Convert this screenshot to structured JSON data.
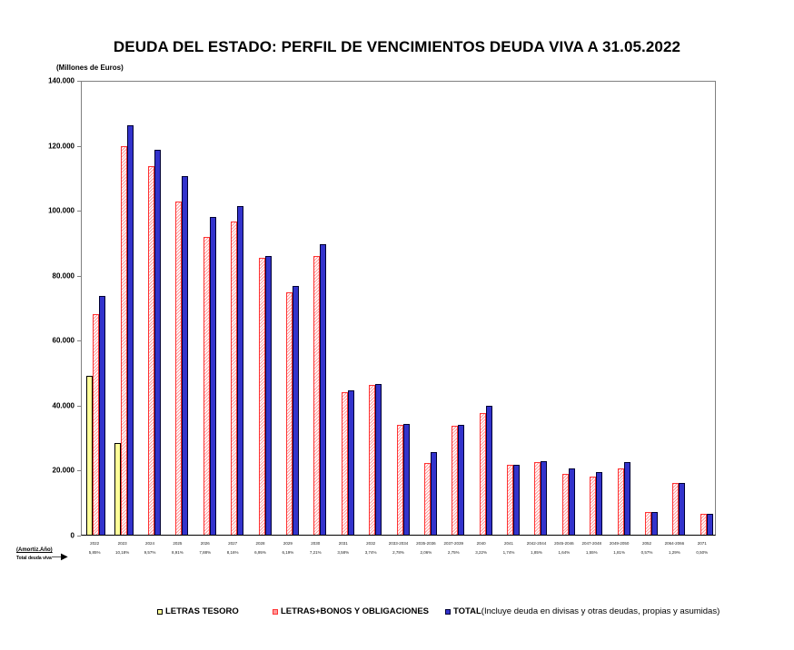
{
  "chart_data": {
    "type": "bar",
    "title": "DEUDA DEL ESTADO: PERFIL DE VENCIMIENTOS DEUDA VIVA A 31.05.2022",
    "ylabel": "(Millones de Euros)",
    "xlabel": "",
    "ylim": [
      0,
      140000
    ],
    "yticks": [
      "0",
      "20.000",
      "40.000",
      "60.000",
      "80.000",
      "100.000",
      "120.000",
      "140.000"
    ],
    "grid": false,
    "legend_position": "bottom",
    "categories": [
      "2022",
      "2023",
      "2024",
      "2025",
      "2026",
      "2027",
      "2028",
      "2029",
      "2030",
      "2031",
      "2032",
      "2033-2034",
      "2035-2036",
      "2037-2039",
      "2040",
      "2041",
      "2042-2044",
      "2045-2046",
      "2047-2048",
      "2049-2050",
      "2052",
      "2064-2066",
      "2071"
    ],
    "series": [
      {
        "name": "LETRAS TESORO",
        "color": "#ffff99",
        "values": [
          49000,
          28300,
          null,
          null,
          null,
          null,
          null,
          null,
          null,
          null,
          null,
          null,
          null,
          null,
          null,
          null,
          null,
          null,
          null,
          null,
          null,
          null,
          null
        ]
      },
      {
        "name": "LETRAS+BONOS Y OBLIGACIONES",
        "color": "#ff3333",
        "values": [
          68000,
          119600,
          113400,
          102500,
          91600,
          96400,
          85200,
          74500,
          85700,
          44000,
          46200,
          33900,
          22100,
          33600,
          37500,
          21600,
          22400,
          18800,
          17900,
          20400,
          7000,
          16000,
          6400
        ]
      },
      {
        "name": "TOTAL (Incluye deuda en divisas y otras deudas, propias y asumidas)",
        "color": "#3333cc",
        "values": [
          73400,
          126000,
          118500,
          110400,
          97800,
          101100,
          85700,
          76700,
          89400,
          44300,
          46500,
          34200,
          25500,
          33900,
          39800,
          21600,
          22700,
          20400,
          19300,
          22400,
          7000,
          16000,
          6400
        ]
      }
    ],
    "amortization_pct_label": "(Amortiz.Año)",
    "amortization_pct_sublabel": "Total deuda viva",
    "amortization_pct": [
      "5,85%",
      "10,18%",
      "9,57%",
      "8,91%",
      "7,88%",
      "8,16%",
      "6,95%",
      "6,19%",
      "7,21%",
      "3,58%",
      "3,74%",
      "2,78%",
      "2,06%",
      "2,75%",
      "3,22%",
      "1,74%",
      "1,85%",
      "1,64%",
      "1,55%",
      "1,81%",
      "0,57%",
      "1,29%",
      "0,50%"
    ]
  },
  "legend": {
    "letras": "LETRAS TESORO",
    "bonos": "LETRAS+BONOS Y OBLIGACIONES",
    "total_bold": "TOTAL",
    "total_rest": " (Incluye deuda en divisas y otras deudas, propias y asumidas)"
  },
  "arrow_glyph": "—▶"
}
